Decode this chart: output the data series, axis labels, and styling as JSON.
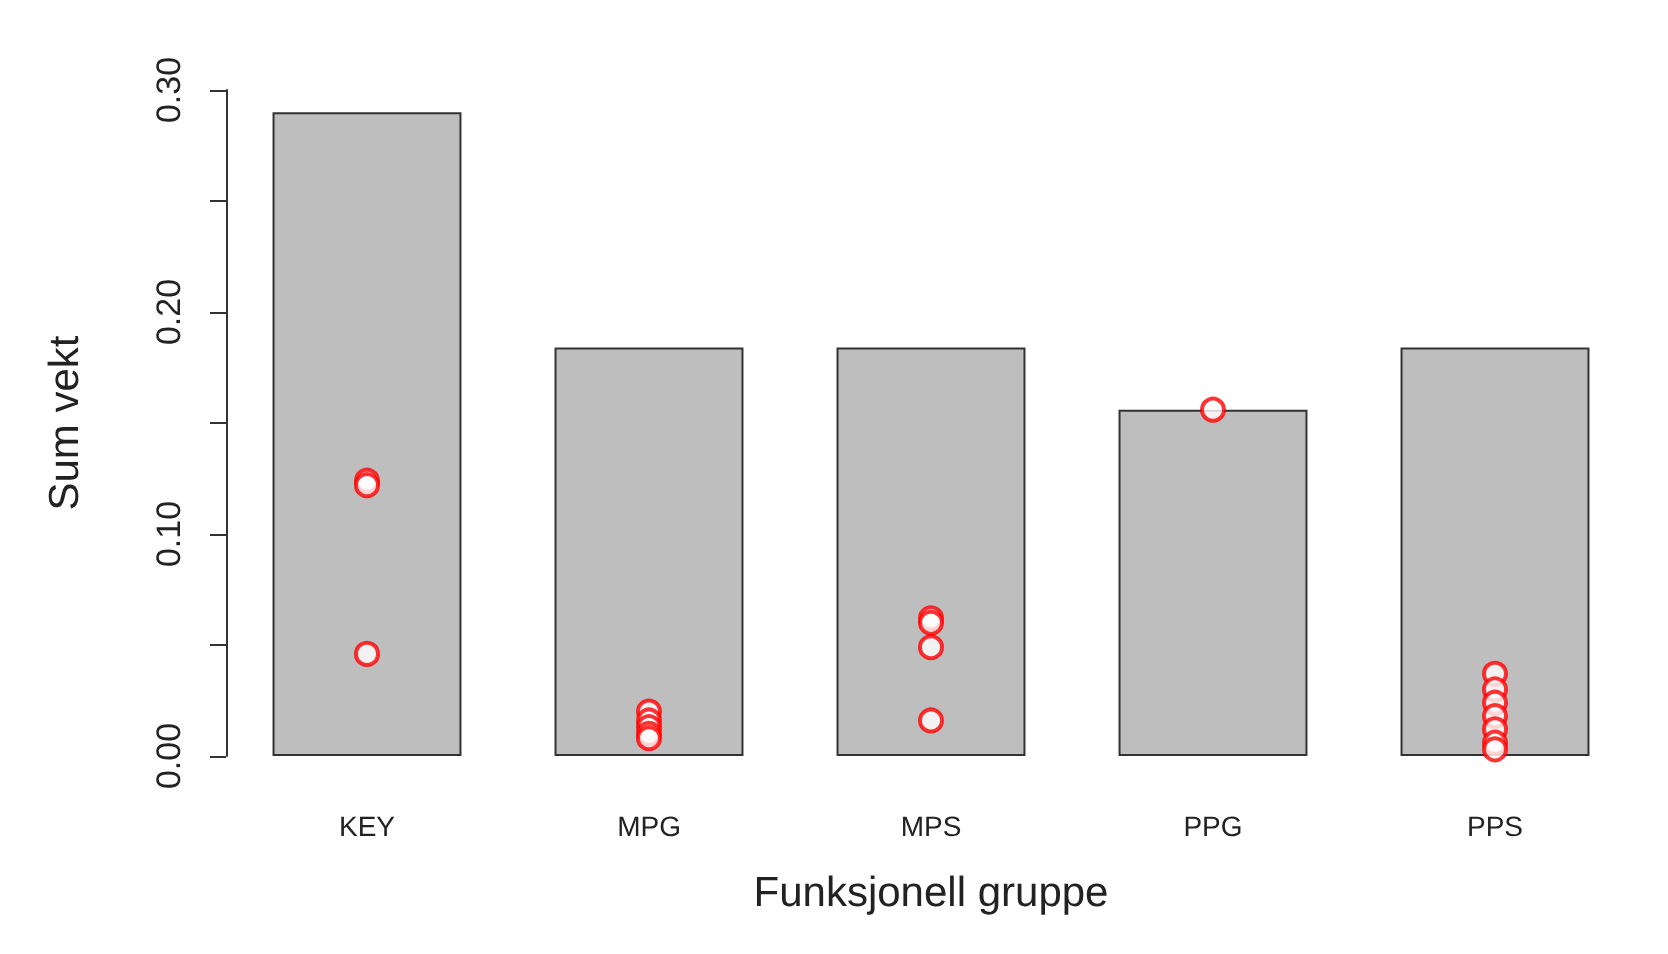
{
  "chart_data": {
    "type": "bar",
    "xlabel": "Funksjonell gruppe",
    "ylabel": "Sum vekt",
    "categories": [
      "KEY",
      "MPG",
      "MPS",
      "PPG",
      "PPS"
    ],
    "values": [
      0.29,
      0.184,
      0.184,
      0.156,
      0.184
    ],
    "color": "#bebebe",
    "series": [
      {
        "type": "scatter",
        "color": "#ff0000",
        "marker": "circle",
        "x": [
          "KEY",
          "KEY",
          "KEY",
          "MPG",
          "MPG",
          "MPG",
          "MPG",
          "MPG",
          "MPS",
          "MPS",
          "MPS",
          "MPS",
          "PPG",
          "PPS",
          "PPS",
          "PPS",
          "PPS",
          "PPS",
          "PPS",
          "PPS"
        ],
        "values": [
          0.124,
          0.122,
          0.046,
          0.02,
          0.016,
          0.013,
          0.01,
          0.008,
          0.062,
          0.06,
          0.049,
          0.016,
          0.156,
          0.037,
          0.03,
          0.024,
          0.018,
          0.012,
          0.006,
          0.003
        ]
      }
    ],
    "ylim": [
      0,
      0.3
    ],
    "yticks": [
      {
        "value": 0,
        "label": "0.00"
      },
      {
        "value": 0.05,
        "label": null
      },
      {
        "value": 0.1,
        "label": "0.10"
      },
      {
        "value": 0.15,
        "label": null
      },
      {
        "value": 0.2,
        "label": "0.20"
      },
      {
        "value": 0.25,
        "label": null
      },
      {
        "value": 0.3,
        "label": "0.30"
      }
    ],
    "grid": false
  }
}
